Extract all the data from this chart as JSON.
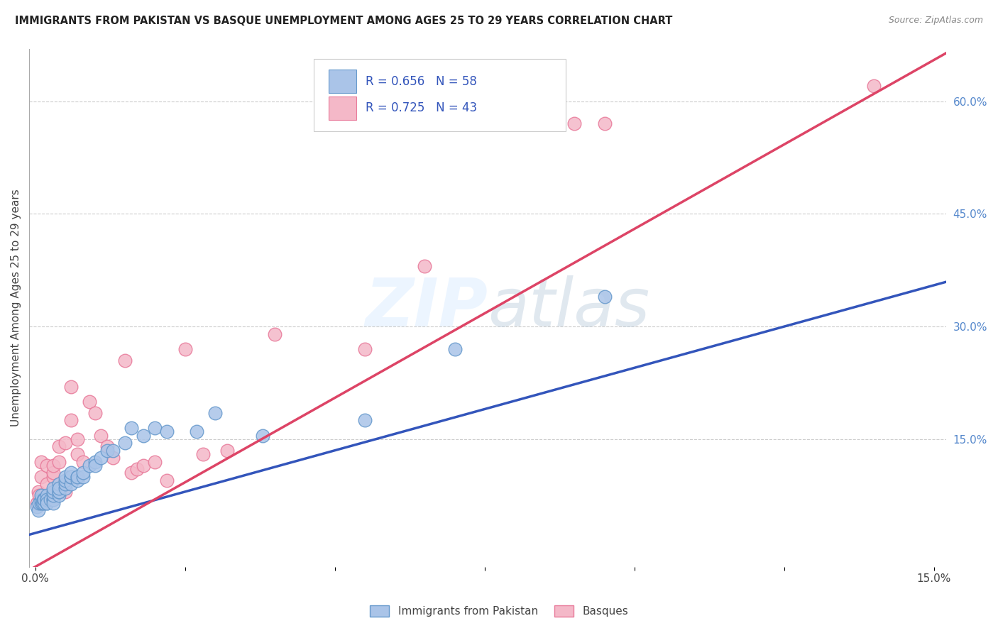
{
  "title": "IMMIGRANTS FROM PAKISTAN VS BASQUE UNEMPLOYMENT AMONG AGES 25 TO 29 YEARS CORRELATION CHART",
  "source": "Source: ZipAtlas.com",
  "ylabel": "Unemployment Among Ages 25 to 29 years",
  "xlim": [
    -0.001,
    0.152
  ],
  "ylim": [
    -0.02,
    0.67
  ],
  "xticks": [
    0.0,
    0.025,
    0.05,
    0.075,
    0.1,
    0.125,
    0.15
  ],
  "xticklabels": [
    "0.0%",
    "",
    "",
    "",
    "",
    "",
    "15.0%"
  ],
  "yticks_right": [
    0.15,
    0.3,
    0.45,
    0.6
  ],
  "yticklabels_right": [
    "15.0%",
    "30.0%",
    "45.0%",
    "60.0%"
  ],
  "grid_color": "#cccccc",
  "background_color": "#ffffff",
  "watermark": "ZIPatlas",
  "series1_name": "Immigrants from Pakistan",
  "series1_color": "#aac4e8",
  "series1_edge_color": "#6699cc",
  "series1_R": "0.656",
  "series1_N": "58",
  "series2_name": "Basques",
  "series2_color": "#f4b8c8",
  "series2_edge_color": "#e87a9a",
  "series2_R": "0.725",
  "series2_N": "43",
  "line1_color": "#3355bb",
  "line2_color": "#dd4466",
  "legend_text_color": "#3355bb",
  "line1_slope": 2.2,
  "line1_intercept": 0.025,
  "line2_slope": 4.5,
  "line2_intercept": -0.02,
  "blue_x": [
    0.0003,
    0.0005,
    0.0007,
    0.001,
    0.001,
    0.001,
    0.0012,
    0.0014,
    0.0015,
    0.0015,
    0.002,
    0.002,
    0.002,
    0.002,
    0.002,
    0.0025,
    0.003,
    0.003,
    0.003,
    0.003,
    0.003,
    0.003,
    0.004,
    0.004,
    0.004,
    0.004,
    0.004,
    0.004,
    0.005,
    0.005,
    0.005,
    0.005,
    0.006,
    0.006,
    0.006,
    0.006,
    0.007,
    0.007,
    0.007,
    0.008,
    0.008,
    0.009,
    0.01,
    0.01,
    0.011,
    0.012,
    0.013,
    0.015,
    0.016,
    0.018,
    0.02,
    0.022,
    0.027,
    0.03,
    0.038,
    0.055,
    0.07,
    0.095
  ],
  "blue_y": [
    0.06,
    0.055,
    0.065,
    0.065,
    0.07,
    0.075,
    0.065,
    0.07,
    0.065,
    0.07,
    0.065,
    0.07,
    0.075,
    0.07,
    0.065,
    0.07,
    0.07,
    0.07,
    0.065,
    0.075,
    0.08,
    0.085,
    0.075,
    0.08,
    0.085,
    0.08,
    0.09,
    0.085,
    0.085,
    0.09,
    0.095,
    0.1,
    0.09,
    0.1,
    0.1,
    0.105,
    0.1,
    0.095,
    0.1,
    0.1,
    0.105,
    0.115,
    0.12,
    0.115,
    0.125,
    0.135,
    0.135,
    0.145,
    0.165,
    0.155,
    0.165,
    0.16,
    0.16,
    0.185,
    0.155,
    0.175,
    0.27,
    0.34
  ],
  "pink_x": [
    0.0003,
    0.0005,
    0.0007,
    0.001,
    0.001,
    0.0012,
    0.0015,
    0.002,
    0.002,
    0.002,
    0.003,
    0.003,
    0.003,
    0.004,
    0.004,
    0.005,
    0.005,
    0.006,
    0.006,
    0.007,
    0.007,
    0.008,
    0.009,
    0.01,
    0.011,
    0.012,
    0.013,
    0.015,
    0.016,
    0.017,
    0.018,
    0.02,
    0.022,
    0.025,
    0.028,
    0.032,
    0.04,
    0.055,
    0.065,
    0.085,
    0.09,
    0.095,
    0.14
  ],
  "pink_y": [
    0.065,
    0.08,
    0.075,
    0.1,
    0.12,
    0.075,
    0.07,
    0.07,
    0.09,
    0.115,
    0.1,
    0.105,
    0.115,
    0.12,
    0.14,
    0.08,
    0.145,
    0.175,
    0.22,
    0.13,
    0.15,
    0.12,
    0.2,
    0.185,
    0.155,
    0.14,
    0.125,
    0.255,
    0.105,
    0.11,
    0.115,
    0.12,
    0.095,
    0.27,
    0.13,
    0.135,
    0.29,
    0.27,
    0.38,
    0.57,
    0.57,
    0.57,
    0.62
  ]
}
